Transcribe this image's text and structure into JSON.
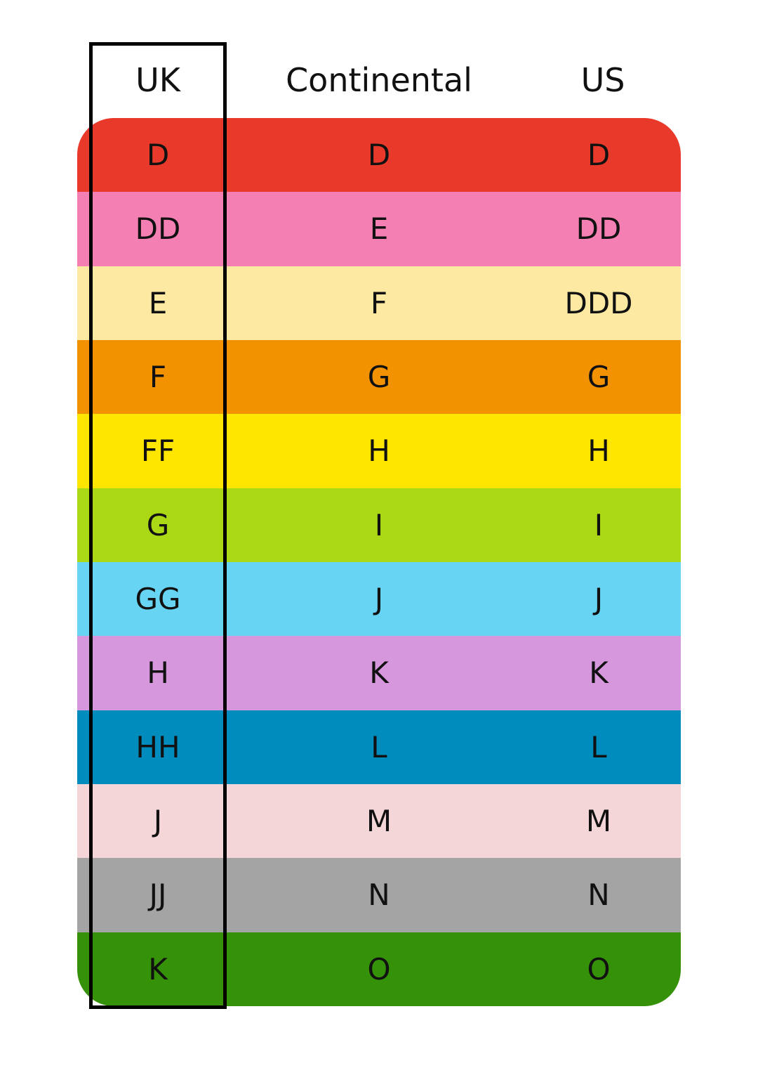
{
  "headers": [
    "UK",
    "Continental",
    "US"
  ],
  "rows": [
    {
      "uk": "D",
      "continental": "D",
      "us": "D",
      "color": "#E8392B"
    },
    {
      "uk": "DD",
      "continental": "E",
      "us": "DD",
      "color": "#F47FB3"
    },
    {
      "uk": "E",
      "continental": "F",
      "us": "DDD",
      "color": "#FDE9A1"
    },
    {
      "uk": "F",
      "continental": "G",
      "us": "G",
      "color": "#F39200"
    },
    {
      "uk": "FF",
      "continental": "H",
      "us": "H",
      "color": "#FFE600"
    },
    {
      "uk": "G",
      "continental": "I",
      "us": "I",
      "color": "#AAD814"
    },
    {
      "uk": "GG",
      "continental": "J",
      "us": "J",
      "color": "#66D4F2"
    },
    {
      "uk": "H",
      "continental": "K",
      "us": "K",
      "color": "#D697DC"
    },
    {
      "uk": "HH",
      "continental": "L",
      "us": "L",
      "color": "#008DBE"
    },
    {
      "uk": "J",
      "continental": "M",
      "us": "M",
      "color": "#F4D5D8"
    },
    {
      "uk": "JJ",
      "continental": "N",
      "us": "N",
      "color": "#A4A4A5"
    },
    {
      "uk": "K",
      "continental": "O",
      "us": "O",
      "color": "#359108"
    }
  ],
  "highlight_column": "UK"
}
